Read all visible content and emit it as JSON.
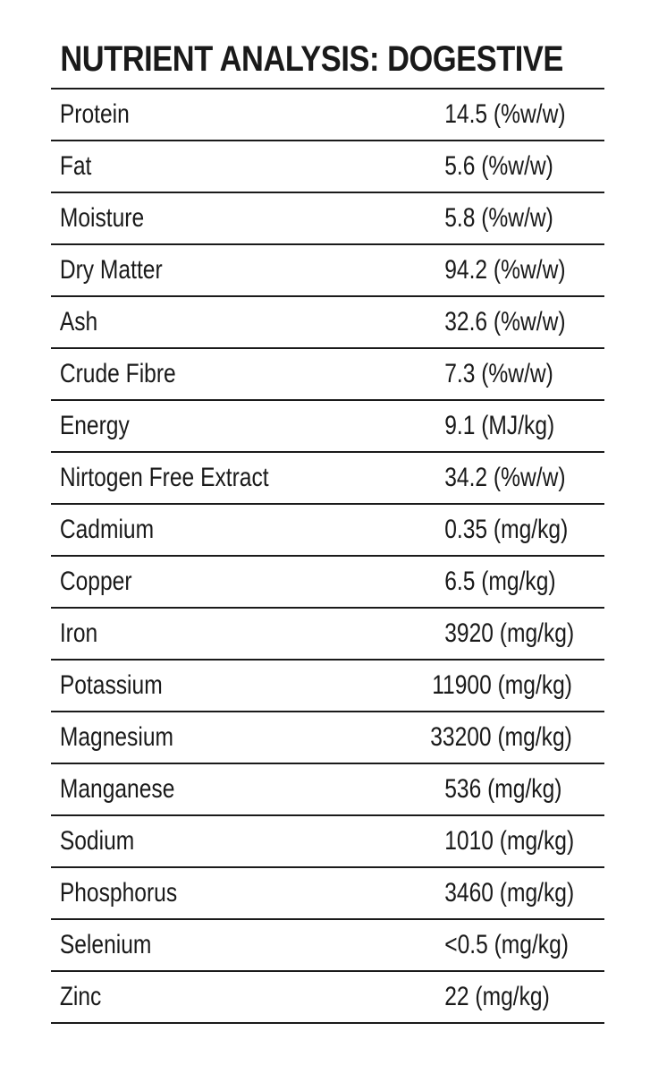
{
  "title": "NUTRIENT ANALYSIS: DOGESTIVE",
  "rows": [
    {
      "name": "Protein",
      "value": "14.5 (%w/w)"
    },
    {
      "name": "Fat",
      "value": "5.6 (%w/w)"
    },
    {
      "name": "Moisture",
      "value": "5.8 (%w/w)"
    },
    {
      "name": "Dry Matter",
      "value": "94.2 (%w/w)"
    },
    {
      "name": "Ash",
      "value": "32.6 (%w/w)"
    },
    {
      "name": "Crude Fibre",
      "value": "7.3 (%w/w)"
    },
    {
      "name": "Energy",
      "value": "9.1 (MJ/kg)"
    },
    {
      "name": "Nirtogen Free Extract",
      "value": "34.2 (%w/w)"
    },
    {
      "name": "Cadmium",
      "value": "0.35 (mg/kg)"
    },
    {
      "name": "Copper",
      "value": "6.5 (mg/kg)"
    },
    {
      "name": "Iron",
      "value": "3920 (mg/kg)"
    },
    {
      "name": "Potassium",
      "value": "11900 (mg/kg)"
    },
    {
      "name": "Magnesium",
      "value": "33200 (mg/kg)"
    },
    {
      "name": "Manganese",
      "value": "536 (mg/kg)"
    },
    {
      "name": "Sodium",
      "value": "1010 (mg/kg)"
    },
    {
      "name": "Phosphorus",
      "value": "3460 (mg/kg)"
    },
    {
      "name": "Selenium",
      "value": "<0.5 (mg/kg)"
    },
    {
      "name": "Zinc",
      "value": "22 (mg/kg)"
    }
  ]
}
